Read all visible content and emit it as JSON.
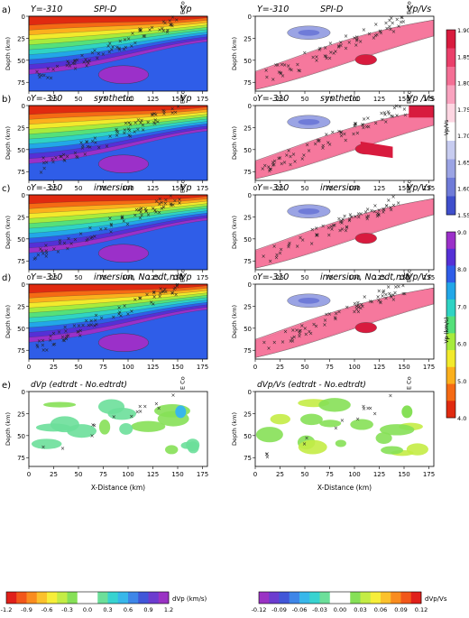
{
  "chart_data": {
    "type": "heatmap",
    "figure": "Velocity and Vp/Vs cross-sections at Y=-310",
    "x_axis": {
      "label": "X-Distance (km)",
      "range": [
        0,
        180
      ],
      "ticks": [
        0,
        25,
        50,
        75,
        100,
        125,
        150,
        175
      ]
    },
    "y_axis": {
      "label": "Depth (km)",
      "range": [
        0,
        85
      ],
      "ticks": [
        0,
        25,
        50,
        75
      ],
      "inverted": true
    },
    "station_marker": {
      "label": "E Co",
      "x": 157
    },
    "rows": [
      {
        "letter": "a)",
        "left": {
          "y": "Y=-310",
          "model": "SPI-D",
          "param": "Vp"
        },
        "right": {
          "y": "Y=-310",
          "model": "SPI-D",
          "param": "Vp/Vs"
        }
      },
      {
        "letter": "b)",
        "left": {
          "y": "Y=-310",
          "model": "synthetic",
          "param": "Vp"
        },
        "right": {
          "y": "Y=-310",
          "model": "synthetic",
          "param": "Vp /Vs"
        }
      },
      {
        "letter": "c)",
        "left": {
          "y": "Y=-310",
          "model": "inversion",
          "param": "Vp"
        },
        "right": {
          "y": "Y=-310",
          "model": "inversion",
          "param": "Vp/Vs"
        }
      },
      {
        "letter": "d)",
        "left": {
          "y": "Y=-310",
          "model": "inversion, No edt,rdt",
          "param": "Vp"
        },
        "right": {
          "y": "Y=-310",
          "model": "inversion, No edt,rdt",
          "param": "Vp/Vs"
        }
      },
      {
        "letter": "e)",
        "left": {
          "title": "dVp (edtrdt  - No.edtrdt)"
        },
        "right": {
          "title": "dVp/Vs (edtrdt  - No.edtrdt)"
        }
      }
    ],
    "colorbars": {
      "vpvs": {
        "title": "Vp/Vs",
        "ticks": [
          "1.90",
          "1.85",
          "1.80",
          "1.75",
          "1.70",
          "1.65",
          "1.60",
          "1.55"
        ],
        "colors": [
          "#d81b3e",
          "#ea3f6a",
          "#f46f95",
          "#f9a3bf",
          "#fdd6e2",
          "#ffffff",
          "#c7ccf0",
          "#9ba4e4",
          "#6f7bd8",
          "#3f4fcc"
        ]
      },
      "vp": {
        "title": "Vp (km/s)",
        "ticks": [
          "9.0",
          "8.0",
          "7.0",
          "6.0",
          "5.0",
          "4.0"
        ],
        "colors": [
          "#9b30c9",
          "#5530d6",
          "#2f5de8",
          "#22a7e8",
          "#2fd3c4",
          "#55e07a",
          "#a7eb3c",
          "#f2ea2c",
          "#fbb01d",
          "#f56a14",
          "#e02a10"
        ]
      },
      "dvp": {
        "title": "dVp (km/s)",
        "ticks": [
          "-1.2",
          "-0.9",
          "-0.6",
          "-0.3",
          "0.0",
          "0.3",
          "0.6",
          "0.9",
          "1.2"
        ],
        "colors": [
          "#e0201a",
          "#f2571a",
          "#f98c1f",
          "#fbc12c",
          "#f7ee3a",
          "#c4ec45",
          "#86e057",
          "#ffffff",
          "#ffffff",
          "#6cdf9a",
          "#38d3d0",
          "#38b7ea",
          "#3e86e8",
          "#4156d8",
          "#6c3ccf",
          "#9a32c4"
        ]
      },
      "dvpvs": {
        "title": "dVp/Vs",
        "ticks": [
          "-0.12",
          "-0.09",
          "-0.06",
          "-0.03",
          "0.00",
          "0.03",
          "0.06",
          "0.09",
          "0.12"
        ],
        "colors": [
          "#9a32c4",
          "#6c3ccf",
          "#4156d8",
          "#3e86e8",
          "#38b7ea",
          "#38d3d0",
          "#6cdf9a",
          "#ffffff",
          "#ffffff",
          "#86e057",
          "#c4ec45",
          "#f7ee3a",
          "#fbc12c",
          "#f98c1f",
          "#f2571a",
          "#e0201a"
        ]
      }
    }
  }
}
